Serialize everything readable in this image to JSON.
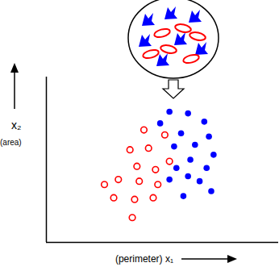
{
  "chart_data": {
    "type": "scatter",
    "xlabel": "(perimeter) x₁",
    "ylabel": "x₂ (area)",
    "xlim": [
      0,
      10
    ],
    "ylim": [
      0,
      10
    ],
    "tick_labels": false,
    "grid": false,
    "series": [
      {
        "color": "#ff0000",
        "marker": "open circle",
        "x": [
          4.2,
          5.1,
          3.6,
          4.4,
          3.9,
          4.7,
          5.3,
          3.1,
          4.0,
          4.8,
          2.9,
          3.8,
          4.6,
          3.7,
          2.5
        ],
        "values": [
          6.8,
          6.5,
          5.6,
          5.7,
          4.6,
          4.4,
          4.9,
          3.8,
          3.7,
          3.5,
          2.7,
          2.6,
          2.7,
          1.5,
          3.5
        ]
      },
      {
        "color": "#0000ff",
        "marker": "filled circle",
        "x": [
          5.3,
          6.1,
          4.9,
          6.8,
          5.8,
          7.0,
          6.4,
          5.5,
          7.2,
          6.2,
          5.6,
          6.9,
          6.1,
          5.3,
          6.6,
          7.1,
          5.9
        ],
        "values": [
          7.9,
          7.8,
          7.2,
          7.3,
          6.6,
          6.4,
          5.9,
          5.8,
          5.3,
          5.0,
          4.5,
          4.5,
          4.0,
          3.8,
          3.7,
          3.1,
          2.8
        ]
      }
    ]
  }
}
